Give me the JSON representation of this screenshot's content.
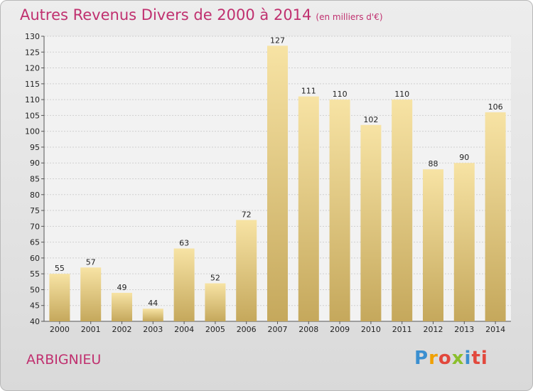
{
  "title": "Autres Revenus Divers de 2000 à 2014",
  "unit": "(en milliers d'€)",
  "place": "ARBIGNIEU",
  "logo": [
    "P",
    "r",
    "o",
    "x",
    "i",
    "ti"
  ],
  "colors": {
    "bar_light": "#f7e3a4",
    "bar_dark": "#c5a85c",
    "title": "#c0306f"
  },
  "chart_data": {
    "type": "bar",
    "title": "Autres Revenus Divers de 2000 à 2014",
    "categories": [
      "2000",
      "2001",
      "2002",
      "2003",
      "2004",
      "2005",
      "2006",
      "2007",
      "2008",
      "2009",
      "2010",
      "2011",
      "2012",
      "2013",
      "2014"
    ],
    "values": [
      55,
      57,
      49,
      44,
      63,
      52,
      72,
      127,
      111,
      110,
      102,
      110,
      88,
      90,
      106
    ],
    "ylim": [
      40,
      130
    ],
    "yticks": [
      40,
      45,
      50,
      55,
      60,
      65,
      70,
      75,
      80,
      85,
      90,
      95,
      100,
      105,
      110,
      115,
      120,
      125,
      130
    ],
    "grid": true,
    "xlabel": "",
    "ylabel": ""
  }
}
